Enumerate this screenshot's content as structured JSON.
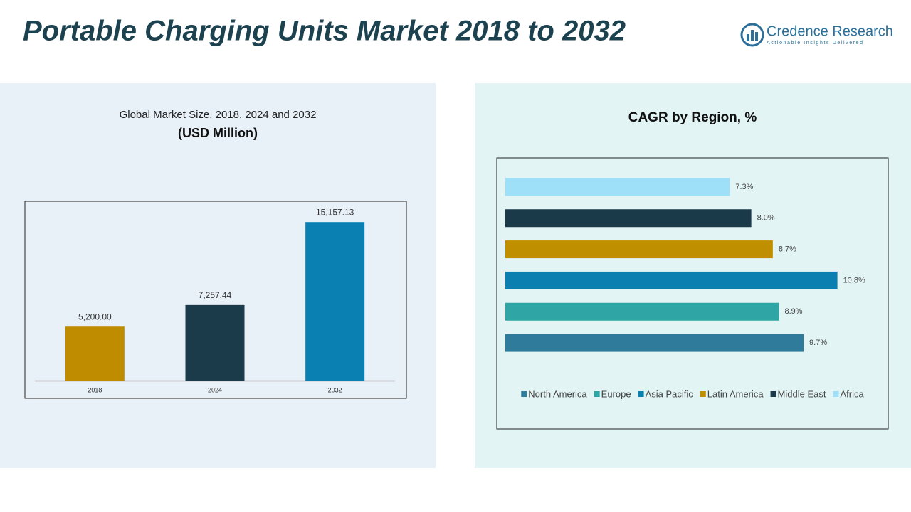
{
  "title": "Portable Charging Units Market 2018 to 2032",
  "brand": {
    "name": "Credence Research",
    "tagline": "Actionable Insights Delivered"
  },
  "chart_data": [
    {
      "type": "bar",
      "title": "Global Market Size, 2018, 2024 and 2032",
      "subtitle": "(USD Million)",
      "categories": [
        "2018",
        "2024",
        "2032"
      ],
      "values": [
        5200,
        7257.44,
        15157.13
      ],
      "value_labels": [
        "5,200.00",
        "7,257.44",
        "15,157.13"
      ],
      "colors": [
        "#bf8c00",
        "#1b3b4b",
        "#0a80b2"
      ],
      "ylim": [
        0,
        17000
      ]
    },
    {
      "type": "barh",
      "title": "CAGR by Region, %",
      "categories": [
        "North America",
        "Europe",
        "Asia Pacific",
        "Latin America",
        "Middle East",
        "Africa"
      ],
      "values": [
        9.7,
        8.9,
        10.8,
        8.7,
        8.0,
        7.3
      ],
      "value_labels": [
        "9.7%",
        "8.9%",
        "10.8%",
        "8.7%",
        "8.0%",
        "7.3%"
      ],
      "colors": [
        "#2e7b9b",
        "#2fa5a5",
        "#0a7fb0",
        "#c08f00",
        "#1a3a4a",
        "#9ee0f8"
      ],
      "xlim": [
        0,
        12.4
      ],
      "legend": "bottom"
    }
  ]
}
